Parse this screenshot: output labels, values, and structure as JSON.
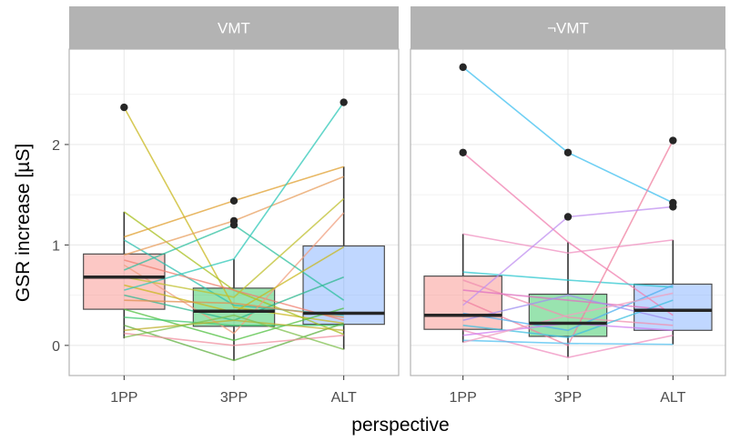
{
  "chart_data": {
    "type": "boxplot",
    "xlabel": "perspective",
    "ylabel": "GSR increase [µS]",
    "ylim": [
      -0.3,
      2.95
    ],
    "yticks": [
      0,
      1,
      2
    ],
    "categories": [
      "1PP",
      "3PP",
      "ALT"
    ],
    "category_colors": {
      "1PP": "#F8766D",
      "3PP": "#00BA38",
      "ALT": "#619CFF"
    },
    "grid": true,
    "panels": [
      {
        "title": "VMT",
        "boxes": [
          {
            "category": "1PP",
            "q1": 0.36,
            "median": 0.68,
            "q3": 0.91,
            "whisker_low": 0.07,
            "whisker_high": 1.33,
            "outliers": [
              2.37
            ]
          },
          {
            "category": "3PP",
            "q1": 0.19,
            "median": 0.34,
            "q3": 0.57,
            "whisker_low": -0.15,
            "whisker_high": 0.86,
            "outliers": [
              1.44,
              1.24,
              1.2
            ]
          },
          {
            "category": "ALT",
            "q1": 0.21,
            "median": 0.32,
            "q3": 0.99,
            "whisker_low": -0.04,
            "whisker_high": 1.78,
            "outliers": [
              2.42
            ]
          }
        ],
        "subject_lines": [
          {
            "values": [
              2.37,
              0.38,
              0.22
            ],
            "color": "#C9B820"
          },
          {
            "values": [
              1.33,
              0.55,
              0.11
            ],
            "color": "#A8C020"
          },
          {
            "values": [
              1.08,
              1.44,
              1.78
            ],
            "color": "#E0A030"
          },
          {
            "values": [
              1.05,
              0.4,
              0.3
            ],
            "color": "#30C0B0"
          },
          {
            "values": [
              0.9,
              1.24,
              1.68
            ],
            "color": "#E8A060"
          },
          {
            "values": [
              0.85,
              0.55,
              0.25
            ],
            "color": "#F08070"
          },
          {
            "values": [
              0.8,
              0.12,
              1.32
            ],
            "color": "#F0A080"
          },
          {
            "values": [
              0.75,
              1.2,
              0.45
            ],
            "color": "#30C0A0"
          },
          {
            "values": [
              0.68,
              0.48,
              1.46
            ],
            "color": "#C0C030"
          },
          {
            "values": [
              0.6,
              0.33,
              0.98
            ],
            "color": "#C9B820"
          },
          {
            "values": [
              0.55,
              0.86,
              2.42
            ],
            "color": "#30C8B8"
          },
          {
            "values": [
              0.5,
              0.25,
              0.68
            ],
            "color": "#30B890"
          },
          {
            "values": [
              0.45,
              0.42,
              0.28
            ],
            "color": "#E09050"
          },
          {
            "values": [
              0.36,
              0.05,
              0.37
            ],
            "color": "#50C040"
          },
          {
            "values": [
              0.28,
              0.2,
              0.2
            ],
            "color": "#40C870"
          },
          {
            "values": [
              0.2,
              -0.15,
              0.22
            ],
            "color": "#60B040"
          },
          {
            "values": [
              0.15,
              0.25,
              0.15
            ],
            "color": "#C0B030"
          },
          {
            "values": [
              0.12,
              0.0,
              0.1
            ],
            "color": "#F090A0"
          },
          {
            "values": [
              0.08,
              0.3,
              -0.04
            ],
            "color": "#80C050"
          }
        ]
      },
      {
        "title": "¬VMT",
        "boxes": [
          {
            "category": "1PP",
            "q1": 0.16,
            "median": 0.3,
            "q3": 0.69,
            "whisker_low": 0.03,
            "whisker_high": 1.11,
            "outliers": [
              2.77,
              1.92
            ]
          },
          {
            "category": "3PP",
            "q1": 0.09,
            "median": 0.22,
            "q3": 0.51,
            "whisker_low": -0.12,
            "whisker_high": 1.03,
            "outliers": [
              1.92,
              1.28
            ]
          },
          {
            "category": "ALT",
            "q1": 0.15,
            "median": 0.35,
            "q3": 0.61,
            "whisker_low": 0.01,
            "whisker_high": 1.05,
            "outliers": [
              2.04,
              1.42,
              1.38
            ]
          }
        ],
        "subject_lines": [
          {
            "values": [
              2.77,
              1.92,
              1.42
            ],
            "color": "#40C0F0"
          },
          {
            "values": [
              1.92,
              1.03,
              0.3
            ],
            "color": "#F080B0"
          },
          {
            "values": [
              1.11,
              0.92,
              1.05
            ],
            "color": "#F090C0"
          },
          {
            "values": [
              0.73,
              0.65,
              0.58
            ],
            "color": "#30C8D0"
          },
          {
            "values": [
              0.65,
              0.28,
              0.2
            ],
            "color": "#F090B0"
          },
          {
            "values": [
              0.55,
              0.45,
              0.35
            ],
            "color": "#E070C0"
          },
          {
            "values": [
              0.45,
              0.0,
              2.04
            ],
            "color": "#F080A0"
          },
          {
            "values": [
              0.4,
              1.28,
              1.38
            ],
            "color": "#C090F0"
          },
          {
            "values": [
              0.32,
              0.15,
              0.6
            ],
            "color": "#50B0F0"
          },
          {
            "values": [
              0.25,
              0.5,
              0.25
            ],
            "color": "#A090F0"
          },
          {
            "values": [
              0.2,
              0.08,
              0.45
            ],
            "color": "#40C0E0"
          },
          {
            "values": [
              0.15,
              -0.12,
              0.1
            ],
            "color": "#F090C0"
          },
          {
            "values": [
              0.1,
              0.22,
              0.15
            ],
            "color": "#D080F0"
          },
          {
            "values": [
              0.05,
              0.02,
              0.01
            ],
            "color": "#50C0F0"
          },
          {
            "values": [
              0.03,
              0.3,
              0.52
            ],
            "color": "#F0A0C0"
          }
        ]
      }
    ]
  }
}
